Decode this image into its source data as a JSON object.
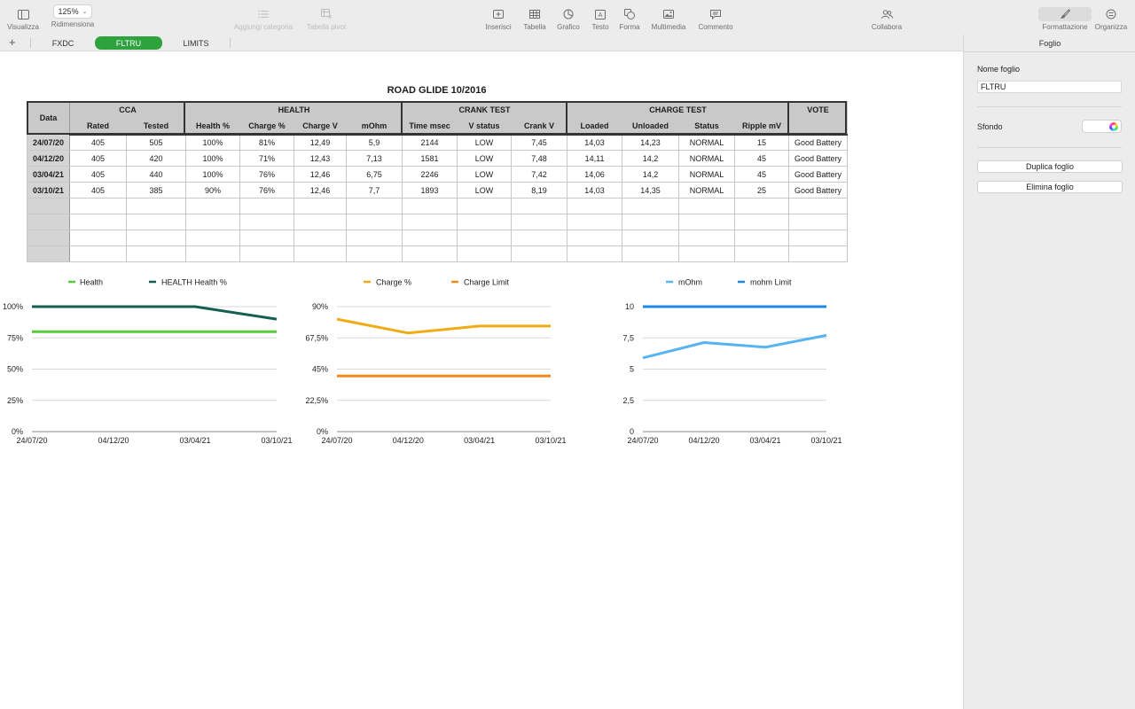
{
  "toolbar": {
    "visualizza": {
      "label": "Visualizza",
      "icon": "sidebar-icon"
    },
    "zoom": {
      "value": "125%",
      "label": "Ridimensiona"
    },
    "aggiungi_categoria": {
      "label": "Aggiungi categoria",
      "icon": "list-icon"
    },
    "tabella_pivot": {
      "label": "Tabella pivot",
      "icon": "pivot-table-icon"
    },
    "inserisci": {
      "label": "Inserisci",
      "icon": "insert-icon"
    },
    "tabella": {
      "label": "Tabella",
      "icon": "table-icon"
    },
    "grafico": {
      "label": "Grafico",
      "icon": "chart-icon"
    },
    "testo": {
      "label": "Testo",
      "icon": "text-box-icon"
    },
    "forma": {
      "label": "Forma",
      "icon": "shape-icon"
    },
    "multimedia": {
      "label": "Multimedia",
      "icon": "media-icon"
    },
    "commento": {
      "label": "Commento",
      "icon": "comment-icon"
    },
    "collabora": {
      "label": "Collabora",
      "icon": "collaborate-icon"
    },
    "formattazione": {
      "label": "Formattazione",
      "icon": "paintbrush-icon"
    },
    "organizza": {
      "label": "Organizza",
      "icon": "organize-icon"
    }
  },
  "tabs": {
    "add_symbol": "+",
    "items": [
      {
        "label": "FXDC",
        "active": false
      },
      {
        "label": "FLTRU",
        "active": true
      },
      {
        "label": "LIMITS",
        "active": false
      }
    ]
  },
  "sheet": {
    "title": "ROAD GLIDE 10/2016",
    "header_groups": {
      "data": "Data",
      "cca": "CCA",
      "health": "HEALTH",
      "crank": "CRANK TEST",
      "charge": "CHARGE TEST",
      "vote": "VOTE"
    },
    "columns": [
      "Rated",
      "Tested",
      "Health %",
      "Charge %",
      "Charge V",
      "mOhm",
      "Time msec",
      "V status",
      "Crank V",
      "Loaded",
      "Unloaded",
      "Status",
      "Ripple mV"
    ],
    "rows": [
      [
        "24/07/20",
        "405",
        "505",
        "100%",
        "81%",
        "12,49",
        "5,9",
        "2144",
        "LOW",
        "7,45",
        "14,03",
        "14,23",
        "NORMAL",
        "15",
        "Good Battery"
      ],
      [
        "04/12/20",
        "405",
        "420",
        "100%",
        "71%",
        "12,43",
        "7,13",
        "1581",
        "LOW",
        "7,48",
        "14,11",
        "14,2",
        "NORMAL",
        "45",
        "Good Battery"
      ],
      [
        "03/04/21",
        "405",
        "440",
        "100%",
        "76%",
        "12,46",
        "6,75",
        "2246",
        "LOW",
        "7,42",
        "14,06",
        "14,2",
        "NORMAL",
        "45",
        "Good Battery"
      ],
      [
        "03/10/21",
        "405",
        "385",
        "90%",
        "76%",
        "12,46",
        "7,7",
        "1893",
        "LOW",
        "8,19",
        "14,03",
        "14,35",
        "NORMAL",
        "25",
        "Good Battery"
      ]
    ],
    "empty_rows": 4
  },
  "chart_data": [
    {
      "type": "line",
      "categories": [
        "24/07/20",
        "04/12/20",
        "03/04/21",
        "03/10/21"
      ],
      "ylim": [
        0,
        100
      ],
      "yticks": [
        "0%",
        "25%",
        "50%",
        "75%",
        "100%"
      ],
      "legend_position": "top",
      "grid": true,
      "series": [
        {
          "name": "Health",
          "values": [
            80,
            80,
            80,
            80
          ],
          "color": "#5ac83a"
        },
        {
          "name": "HEALTH Health %",
          "values": [
            100,
            100,
            100,
            90
          ],
          "color": "#135f52"
        }
      ]
    },
    {
      "type": "line",
      "categories": [
        "24/07/20",
        "04/12/20",
        "03/04/21",
        "03/10/21"
      ],
      "ylim": [
        0,
        90
      ],
      "yticks": [
        "0%",
        "22,5%",
        "45%",
        "67,5%",
        "90%"
      ],
      "legend_position": "top",
      "grid": true,
      "series": [
        {
          "name": "Charge %",
          "values": [
            81,
            71,
            76,
            76
          ],
          "color": "#f0ac17"
        },
        {
          "name": "Charge Limit",
          "values": [
            40,
            40,
            40,
            40
          ],
          "color": "#f08a1e"
        }
      ]
    },
    {
      "type": "line",
      "categories": [
        "24/07/20",
        "04/12/20",
        "03/04/21",
        "03/10/21"
      ],
      "ylim": [
        0,
        10
      ],
      "yticks": [
        "0",
        "2,5",
        "5",
        "7,5",
        "10"
      ],
      "legend_position": "top",
      "grid": true,
      "series": [
        {
          "name": "mOhm",
          "values": [
            5.9,
            7.13,
            6.75,
            7.7
          ],
          "color": "#57b4f0"
        },
        {
          "name": "mohm Limit",
          "values": [
            10,
            10,
            10,
            10
          ],
          "color": "#1e88e5"
        }
      ]
    }
  ],
  "sidebar": {
    "title": "Foglio",
    "name_label": "Nome foglio",
    "name_value": "FLTRU",
    "background_label": "Sfondo",
    "duplicate_label": "Duplica foglio",
    "delete_label": "Elimina foglio"
  }
}
